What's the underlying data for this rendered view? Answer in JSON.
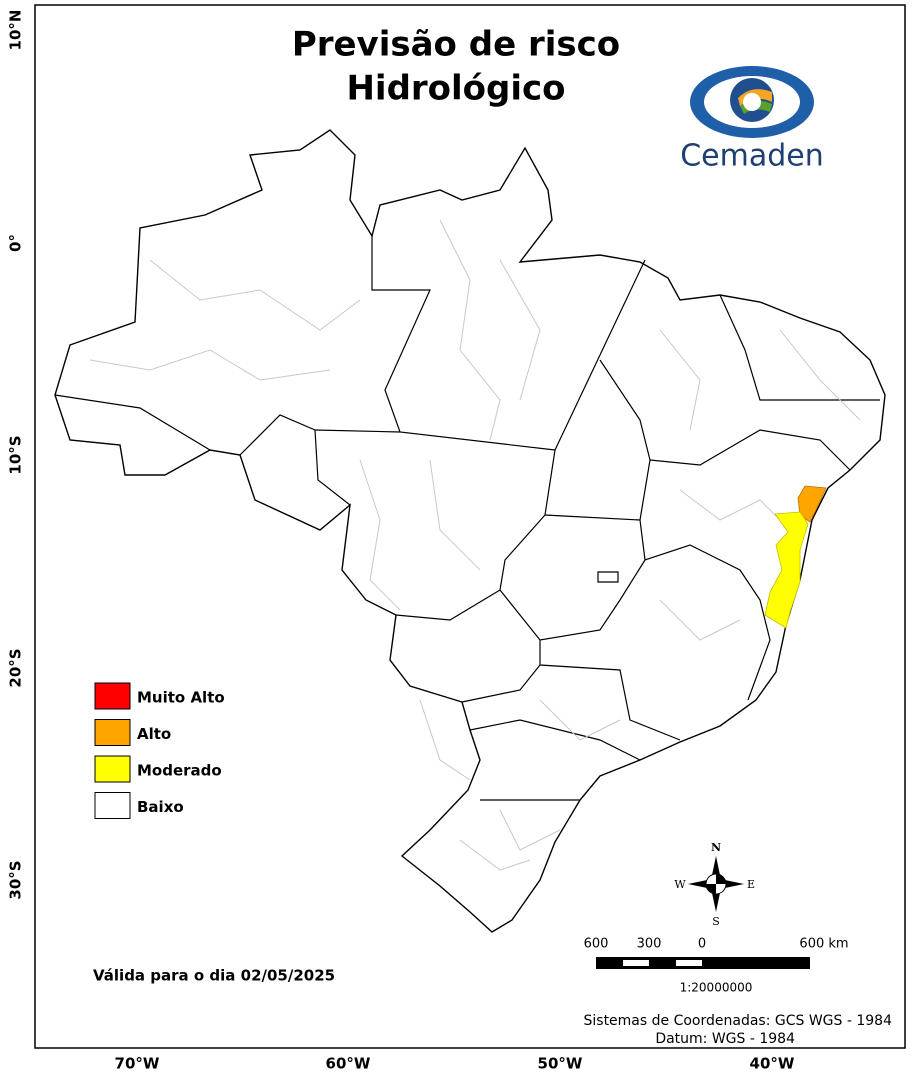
{
  "header": {
    "title_lines": [
      "Previsão de risco",
      "Hidrológico"
    ]
  },
  "logo": {
    "text": "Cemaden"
  },
  "legend": {
    "items": [
      {
        "label": "Muito Alto",
        "color": "#ff0000"
      },
      {
        "label": "Alto",
        "color": "#ffa500"
      },
      {
        "label": "Moderado",
        "color": "#ffff00"
      },
      {
        "label": "Baixo",
        "color": "#ffffff"
      }
    ]
  },
  "valid_date": "Válida para o dia 02/05/2025",
  "latitude_labels": [
    "10°N",
    "0°",
    "10°S",
    "20°S",
    "30°S"
  ],
  "longitude_labels": [
    "70°W",
    "60°W",
    "50°W",
    "40°W"
  ],
  "compass": {
    "north": "N",
    "south": "S",
    "east": "E",
    "west": "W"
  },
  "scale_bar": {
    "labels": [
      "600",
      "300",
      "0",
      "600 km"
    ],
    "ratio": "1:20000000"
  },
  "footer": {
    "lines": [
      "Sistemas de Coordenadas: GCS WGS - 1984",
      "Datum: WGS - 1984"
    ]
  }
}
